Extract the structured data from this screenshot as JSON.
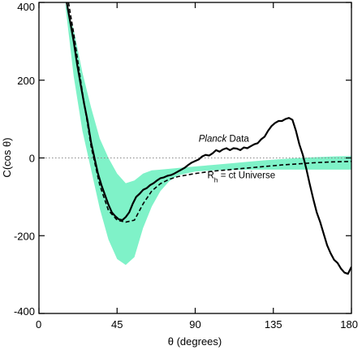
{
  "chart_data": {
    "type": "line",
    "title": "",
    "xlabel": "θ (degrees)",
    "ylabel": "C(cos θ)",
    "xlim": [
      0,
      180
    ],
    "ylim": [
      -400,
      400
    ],
    "xticks": [
      0,
      45,
      90,
      135,
      180
    ],
    "yticks": [
      -400,
      -200,
      0,
      200,
      400
    ],
    "grid": false,
    "reference_line": {
      "y": 0,
      "style": "dotted",
      "color": "#888888"
    },
    "band": {
      "name": "Rh = ct Universe",
      "color": "#7ff2c8",
      "x": [
        10,
        15,
        20,
        25,
        30,
        35,
        40,
        45,
        50,
        55,
        60,
        65,
        70,
        75,
        80,
        90,
        100,
        110,
        120,
        130,
        140,
        150,
        160,
        170,
        180
      ],
      "upper": [
        400,
        400,
        330,
        220,
        130,
        50,
        0,
        -40,
        -65,
        -58,
        -40,
        -32,
        -30,
        -28,
        -26,
        -22,
        -18,
        -14,
        -10,
        -6,
        -3,
        0,
        2,
        4,
        5
      ],
      "lower": [
        400,
        400,
        210,
        70,
        -30,
        -130,
        -210,
        -260,
        -275,
        -255,
        -180,
        -125,
        -85,
        -60,
        -45,
        -35,
        -32,
        -31,
        -30,
        -30,
        -30,
        -30,
        -30,
        -30,
        -30
      ]
    },
    "series": [
      {
        "name": "Rh = ct Universe",
        "style": "dashed",
        "color": "#000000",
        "x": [
          17,
          20,
          25,
          30,
          35,
          40,
          45,
          50,
          55,
          60,
          65,
          70,
          75,
          80,
          90,
          100,
          110,
          120,
          130,
          140,
          150,
          160,
          170,
          180
        ],
        "y": [
          400,
          320,
          170,
          30,
          -70,
          -135,
          -160,
          -165,
          -160,
          -118,
          -85,
          -66,
          -55,
          -48,
          -40,
          -34,
          -30,
          -26,
          -22,
          -18,
          -15,
          -12,
          -10,
          -9
        ]
      },
      {
        "name": "Planck Data",
        "style": "solid",
        "color": "#000000",
        "x": [
          16,
          18,
          20,
          22,
          24,
          26,
          28,
          30,
          32,
          34,
          36,
          38,
          40,
          42,
          44,
          46,
          48,
          50,
          52,
          54,
          56,
          58,
          60,
          62,
          64,
          66,
          68,
          70,
          72,
          74,
          76,
          78,
          80,
          82,
          84,
          86,
          88,
          90,
          92,
          94,
          96,
          98,
          100,
          102,
          104,
          106,
          108,
          110,
          112,
          114,
          116,
          118,
          120,
          122,
          124,
          126,
          128,
          130,
          132,
          134,
          136,
          138,
          140,
          142,
          144,
          146,
          148,
          150,
          152,
          154,
          156,
          158,
          160,
          162,
          164,
          166,
          168,
          170,
          172,
          174,
          176,
          178,
          180
        ],
        "y": [
          400,
          350,
          300,
          240,
          190,
          140,
          95,
          40,
          0,
          -40,
          -70,
          -95,
          -120,
          -140,
          -150,
          -158,
          -160,
          -152,
          -140,
          -118,
          -100,
          -92,
          -82,
          -78,
          -70,
          -65,
          -58,
          -52,
          -50,
          -46,
          -44,
          -40,
          -35,
          -30,
          -25,
          -18,
          -12,
          -8,
          -4,
          4,
          8,
          6,
          12,
          20,
          16,
          22,
          25,
          20,
          25,
          24,
          20,
          27,
          25,
          30,
          35,
          38,
          48,
          55,
          70,
          82,
          90,
          95,
          95,
          100,
          103,
          98,
          70,
          35,
          8,
          -28,
          -68,
          -105,
          -140,
          -165,
          -195,
          -225,
          -245,
          -262,
          -270,
          -285,
          -295,
          -298,
          -280
        ]
      }
    ],
    "annotations": [
      {
        "text_italic": "Planck",
        "text": " Data",
        "x": 92,
        "y": 42
      },
      {
        "text": "Rh = ct Universe",
        "x": 97,
        "y": -52
      }
    ]
  }
}
